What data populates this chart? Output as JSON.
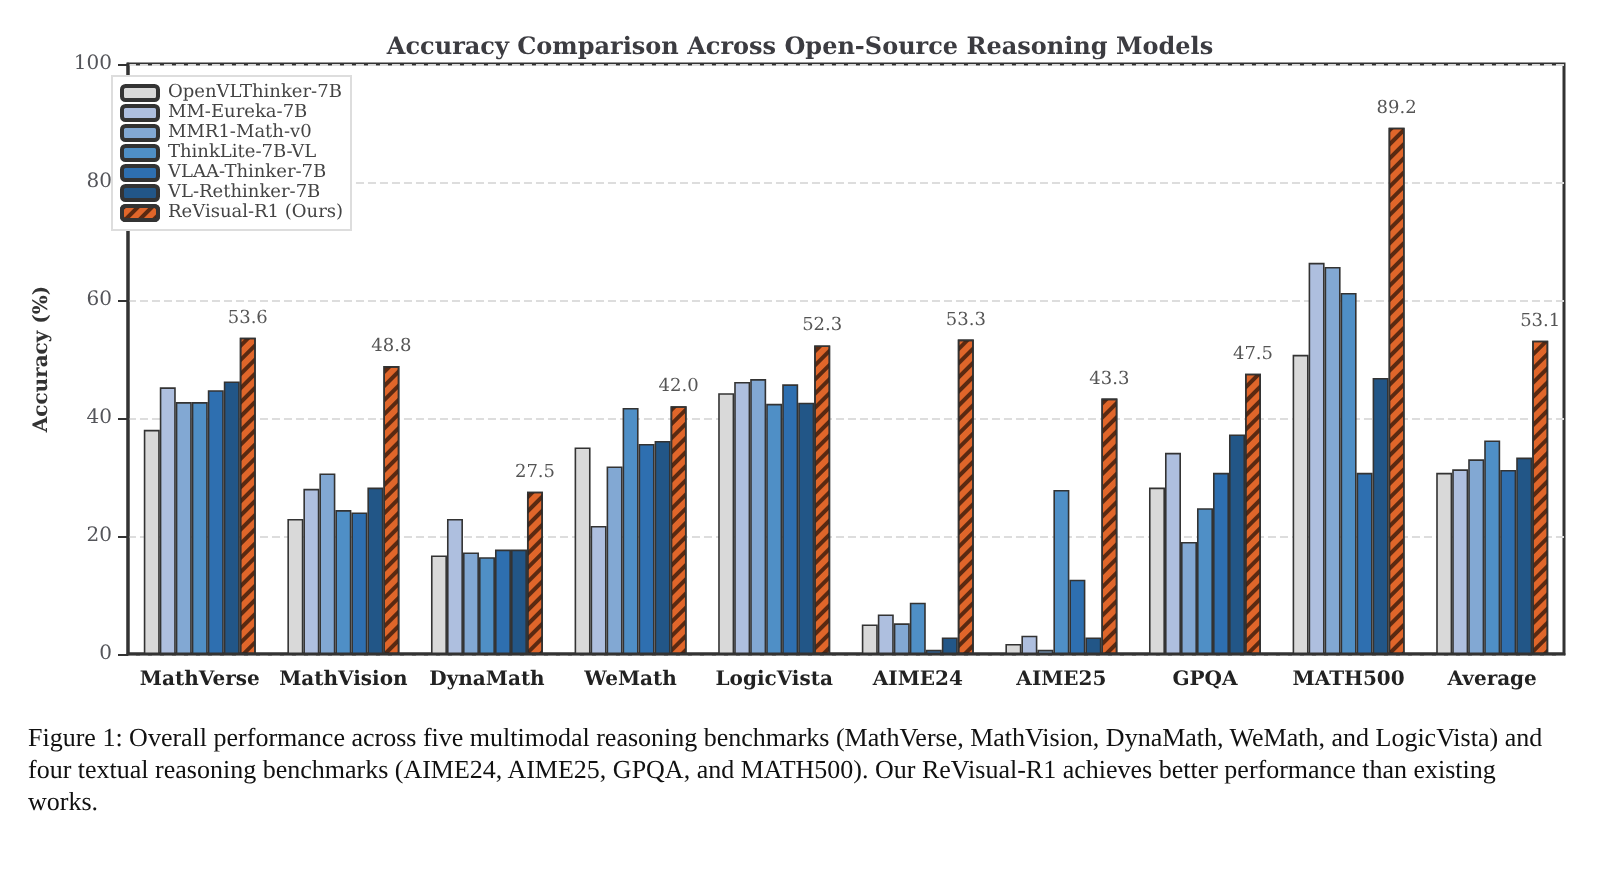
{
  "chart_data": {
    "type": "bar",
    "title": "Accuracy Comparison Across Open-Source Reasoning Models",
    "ylabel": "Accuracy (%)",
    "categories": [
      "MathVerse",
      "MathVision",
      "DynaMath",
      "WeMath",
      "LogicVista",
      "AIME24",
      "AIME25",
      "GPQA",
      "MATH500",
      "Average"
    ],
    "series": [
      {
        "name": "OpenVLThinker-7B",
        "color": "#d9d9d9",
        "values": [
          38.0,
          22.9,
          16.7,
          35.0,
          44.2,
          5.0,
          1.7,
          28.2,
          50.7,
          30.7
        ]
      },
      {
        "name": "MM-Eureka-7B",
        "color": "#aebfdf",
        "values": [
          45.2,
          28.0,
          22.9,
          21.7,
          46.1,
          6.7,
          3.1,
          34.1,
          66.3,
          31.3
        ]
      },
      {
        "name": "MMR1-Math-v0",
        "color": "#82a8d3",
        "values": [
          42.7,
          30.6,
          17.2,
          31.8,
          46.6,
          5.2,
          0.7,
          19.0,
          65.6,
          33.0
        ]
      },
      {
        "name": "ThinkLite-7B-VL",
        "color": "#4f8fc6",
        "values": [
          42.7,
          24.4,
          16.4,
          41.7,
          42.4,
          8.7,
          27.8,
          24.7,
          61.2,
          36.2
        ]
      },
      {
        "name": "VLAA-Thinker-7B",
        "color": "#2e6fb0",
        "values": [
          44.7,
          24.0,
          17.7,
          35.6,
          45.7,
          0.7,
          12.6,
          30.7,
          30.7,
          31.2
        ]
      },
      {
        "name": "VL-Rethinker-7B",
        "color": "#225687",
        "values": [
          46.2,
          28.2,
          17.7,
          36.1,
          42.6,
          2.8,
          2.8,
          37.2,
          46.8,
          33.3
        ]
      },
      {
        "name": "ReVisual-R1 (Ours)",
        "color": "#e0662a",
        "values": [
          53.6,
          48.8,
          27.5,
          42.0,
          52.3,
          53.3,
          43.3,
          47.5,
          89.2,
          53.1
        ],
        "value_labels": [
          "53.6",
          "48.8",
          "27.5",
          "42.0",
          "52.3",
          "53.3",
          "43.3",
          "47.5",
          "89.2",
          "53.1"
        ]
      }
    ],
    "ylim": [
      0,
      100
    ],
    "yticks": [
      0,
      20,
      40,
      60,
      80,
      100
    ],
    "grid": "y",
    "legend": "top left",
    "annotations": [
      "Figure 1: Overall performance across five multimodal reasoning benchmarks (MathVerse, MathVision, DynaMath, WeMath, and LogicVista) and four textual reasoning benchmarks (AIME24, AIME25, GPQA, and MATH500). Our ReVisual-R1 achieves better performance than existing works."
    ]
  }
}
